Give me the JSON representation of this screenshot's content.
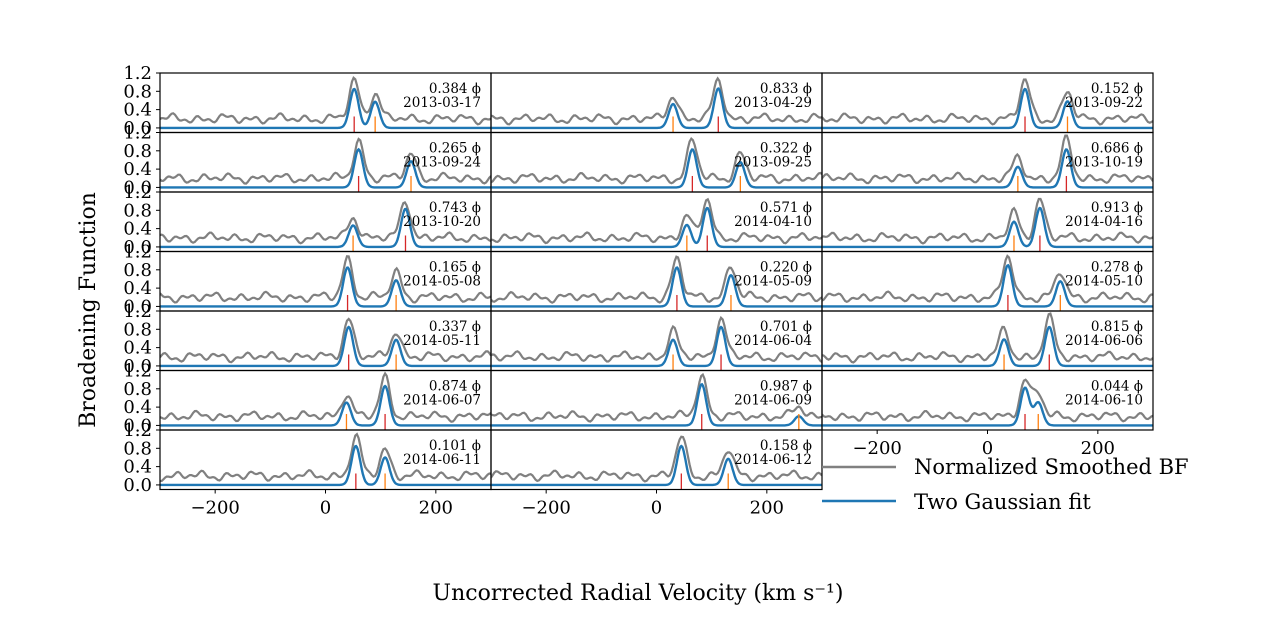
{
  "chart_data": {
    "type": "line",
    "xlabel": "Uncorrected Radial Velocity (km s⁻¹)",
    "ylabel": "Broadening Function",
    "xlim": [
      -300,
      300
    ],
    "ylim": [
      -0.1,
      1.2
    ],
    "xticks": [
      -200,
      0,
      200
    ],
    "yticks": [
      0.0,
      0.4,
      0.8,
      1.2
    ],
    "grid": false,
    "legend": {
      "placement": "lower-right",
      "entries": [
        {
          "name": "Normalized Smoothed BF",
          "color": "#808080"
        },
        {
          "name": "Two Gaussian fit",
          "color": "#1f77b4"
        }
      ]
    },
    "colors": {
      "bf": "#808080",
      "fit": "#1f77b4",
      "primary_marker": "#d62728",
      "secondary_marker": "#ff7f0e"
    },
    "panels": [
      {
        "phase": "0.384 ϕ",
        "date": "2013-03-17",
        "primary_rv": 52,
        "primary_amp": 0.85,
        "secondary_rv": 90,
        "secondary_amp": 0.57
      },
      {
        "phase": "0.833 ϕ",
        "date": "2013-04-29",
        "primary_rv": 112,
        "primary_amp": 0.86,
        "secondary_rv": 30,
        "secondary_amp": 0.52
      },
      {
        "phase": "0.152 ϕ",
        "date": "2013-09-22",
        "primary_rv": 68,
        "primary_amp": 0.85,
        "secondary_rv": 145,
        "secondary_amp": 0.58
      },
      {
        "phase": "0.265 ϕ",
        "date": "2013-09-24",
        "primary_rv": 60,
        "primary_amp": 0.83,
        "secondary_rv": 155,
        "secondary_amp": 0.57
      },
      {
        "phase": "0.322 ϕ",
        "date": "2013-09-25",
        "primary_rv": 65,
        "primary_amp": 0.83,
        "secondary_rv": 152,
        "secondary_amp": 0.55
      },
      {
        "phase": "0.686 ϕ",
        "date": "2013-10-19",
        "primary_rv": 143,
        "primary_amp": 0.83,
        "secondary_rv": 55,
        "secondary_amp": 0.45
      },
      {
        "phase": "0.743 ϕ",
        "date": "2013-10-20",
        "primary_rv": 145,
        "primary_amp": 0.83,
        "secondary_rv": 50,
        "secondary_amp": 0.47
      },
      {
        "phase": "0.571 ϕ",
        "date": "2014-04-10",
        "primary_rv": 92,
        "primary_amp": 0.85,
        "secondary_rv": 55,
        "secondary_amp": 0.48
      },
      {
        "phase": "0.913 ϕ",
        "date": "2014-04-16",
        "primary_rv": 95,
        "primary_amp": 0.85,
        "secondary_rv": 48,
        "secondary_amp": 0.55
      },
      {
        "phase": "0.165 ϕ",
        "date": "2014-05-08",
        "primary_rv": 40,
        "primary_amp": 0.85,
        "secondary_rv": 128,
        "secondary_amp": 0.57
      },
      {
        "phase": "0.220 ϕ",
        "date": "2014-05-09",
        "primary_rv": 37,
        "primary_amp": 0.85,
        "secondary_rv": 135,
        "secondary_amp": 0.68
      },
      {
        "phase": "0.278 ϕ",
        "date": "2014-05-10",
        "primary_rv": 37,
        "primary_amp": 0.9,
        "secondary_rv": 132,
        "secondary_amp": 0.55
      },
      {
        "phase": "0.337 ϕ",
        "date": "2014-05-11",
        "primary_rv": 42,
        "primary_amp": 0.85,
        "secondary_rv": 128,
        "secondary_amp": 0.57
      },
      {
        "phase": "0.701 ϕ",
        "date": "2014-06-04",
        "primary_rv": 117,
        "primary_amp": 0.85,
        "secondary_rv": 30,
        "secondary_amp": 0.57
      },
      {
        "phase": "0.815 ϕ",
        "date": "2014-06-06",
        "primary_rv": 112,
        "primary_amp": 0.85,
        "secondary_rv": 30,
        "secondary_amp": 0.58
      },
      {
        "phase": "0.874 ϕ",
        "date": "2014-06-07",
        "primary_rv": 108,
        "primary_amp": 0.86,
        "secondary_rv": 38,
        "secondary_amp": 0.5
      },
      {
        "phase": "0.987 ϕ",
        "date": "2014-06-09",
        "primary_rv": 82,
        "primary_amp": 0.9,
        "secondary_rv": 258,
        "secondary_amp": 0.2
      },
      {
        "phase": "0.044 ϕ",
        "date": "2014-06-10",
        "primary_rv": 68,
        "primary_amp": 0.82,
        "secondary_rv": 92,
        "secondary_amp": 0.5
      },
      {
        "phase": "0.101 ϕ",
        "date": "2014-06-11",
        "primary_rv": 55,
        "primary_amp": 0.85,
        "secondary_rv": 108,
        "secondary_amp": 0.6
      },
      {
        "phase": "0.158 ϕ",
        "date": "2014-06-12",
        "primary_rv": 45,
        "primary_amp": 0.85,
        "secondary_rv": 130,
        "secondary_amp": 0.57
      }
    ]
  }
}
